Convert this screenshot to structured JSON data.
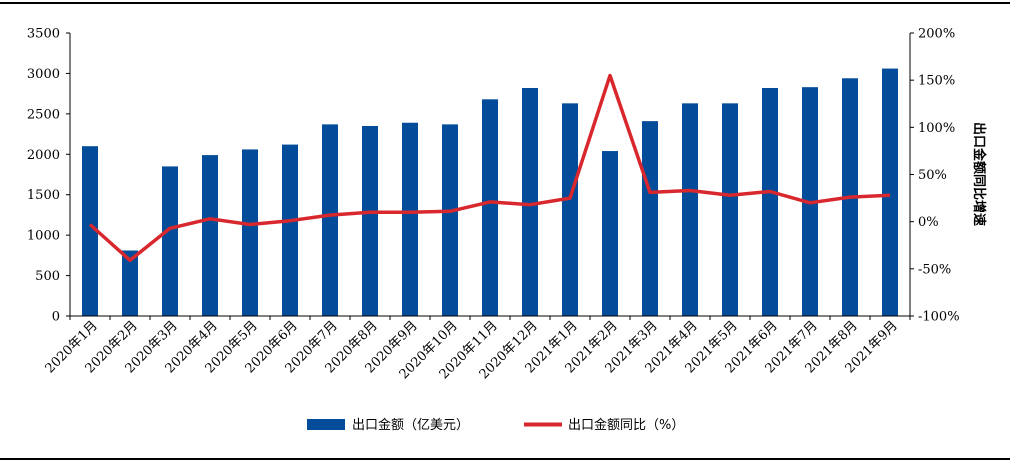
{
  "chart_data": {
    "type": "bar+line",
    "categories": [
      "2020年1月",
      "2020年2月",
      "2020年3月",
      "2020年4月",
      "2020年5月",
      "2020年6月",
      "2020年7月",
      "2020年8月",
      "2020年9月",
      "2020年10月",
      "2020年11月",
      "2020年12月",
      "2021年1月",
      "2021年2月",
      "2021年3月",
      "2021年4月",
      "2021年5月",
      "2021年6月",
      "2021年7月",
      "2021年8月",
      "2021年9月"
    ],
    "series": [
      {
        "name": "出口金额（亿美元）",
        "type": "bar",
        "axis": "left",
        "color": "#034C99",
        "values": [
          2100,
          810,
          1850,
          1990,
          2060,
          2120,
          2370,
          2350,
          2390,
          2370,
          2680,
          2820,
          2630,
          2040,
          2410,
          2630,
          2630,
          2820,
          2830,
          2940,
          3060
        ]
      },
      {
        "name": "出口金额同比（%）",
        "type": "line",
        "axis": "right",
        "color": "#D9272E",
        "values": [
          -3,
          -41,
          -7,
          3,
          -3,
          1,
          7,
          10,
          10,
          11,
          21,
          18,
          25,
          155,
          31,
          33,
          28,
          32,
          20,
          26,
          28
        ]
      }
    ],
    "ylim_left": [
      0,
      3500
    ],
    "yticks_left": [
      "3500",
      "3000",
      "2500",
      "2000",
      "1500",
      "1000",
      "500",
      "0"
    ],
    "ylim_right": [
      -100,
      200
    ],
    "yticks_right": [
      "200%",
      "150%",
      "100%",
      "50%",
      "0%",
      "-50%",
      "-100%"
    ],
    "ylabel_right": "出口金额同比增速",
    "legend_position": "bottom",
    "grid": false
  }
}
